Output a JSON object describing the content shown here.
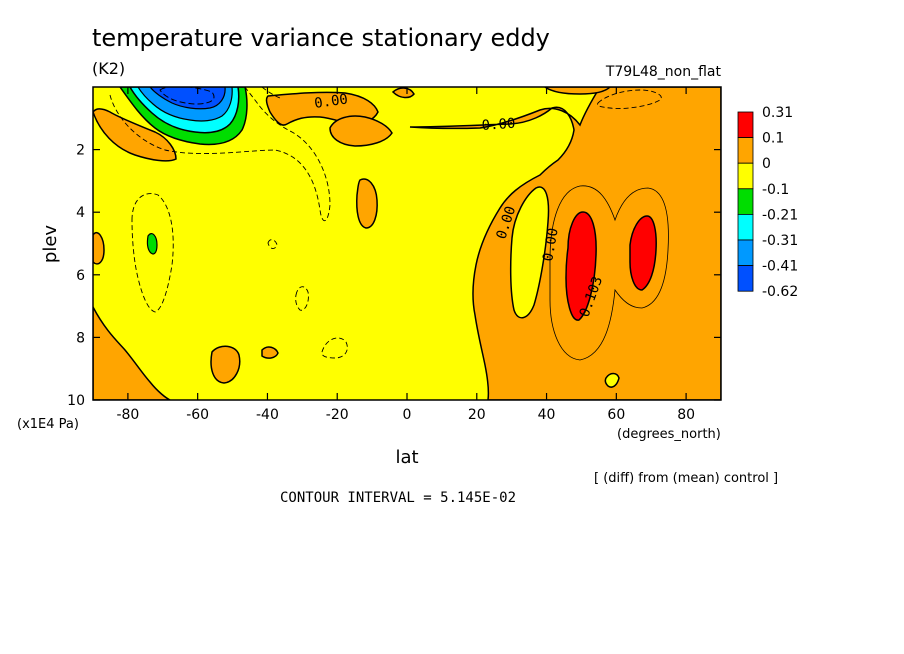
{
  "chart_data": {
    "type": "heatmap",
    "title": "temperature variance stationary eddy",
    "units": "(K2)",
    "experiment_label": "T79L48_non_flat",
    "xlabel": "lat",
    "xunits": "(degrees_north)",
    "ylabel": "plev",
    "yunits": "(x1E4 Pa)",
    "xlim": [
      -90,
      90
    ],
    "ylim": [
      10,
      0
    ],
    "x_ticks": [
      -80,
      -60,
      -40,
      -20,
      0,
      20,
      40,
      60,
      80
    ],
    "y_ticks": [
      2,
      4,
      6,
      8,
      10
    ],
    "footnote": "[ (diff) from (mean) control ]",
    "contour_interval_text": "CONTOUR INTERVAL = 5.145E-02",
    "contour_labels": [
      "0.00",
      "0.00",
      "0.00",
      "0.00",
      "0.103"
    ],
    "legend": {
      "bounds": [
        "0.31",
        "0.1",
        "0",
        "-0.1",
        "-0.21",
        "-0.31",
        "-0.41",
        "-0.62"
      ],
      "colors": [
        "#ff0000",
        "#ffa500",
        "#ffff00",
        "#00dd00",
        "#00ffff",
        "#0099ff",
        "#0050ff"
      ]
    },
    "features": [
      {
        "name": "strong-negative-core",
        "lat": [
          -70,
          -50
        ],
        "plev": [
          0.0,
          1.5
        ],
        "level": "< -0.41"
      },
      {
        "name": "positive-max-50N",
        "lat": [
          46,
          54
        ],
        "plev": [
          3.8,
          7.6
        ],
        "level": "> 0.1"
      },
      {
        "name": "positive-max-68N",
        "lat": [
          63,
          70
        ],
        "plev": [
          3.6,
          6.6
        ],
        "level": "> 0.1"
      },
      {
        "name": "negative-spot-72S",
        "lat": [
          -73,
          -71
        ],
        "plev": [
          4.7,
          5.4
        ],
        "level": "-0.21 to -0.1"
      }
    ]
  }
}
